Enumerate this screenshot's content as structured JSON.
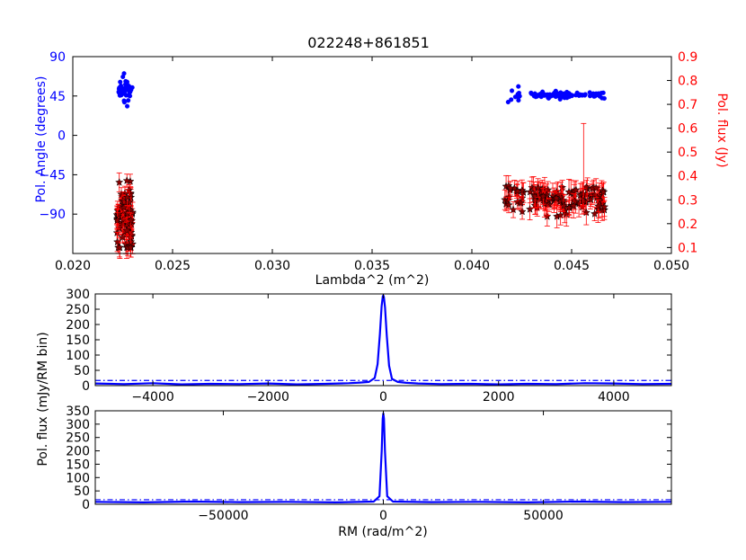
{
  "figure": {
    "title": "022248+861851"
  },
  "colors": {
    "angle": "#0000ff",
    "flux_marker": "#8b0000",
    "flux_error": "#ff0000",
    "fdf_line": "#0000ff",
    "axis": "#000000"
  },
  "chart_data": [
    {
      "type": "scatter",
      "title": "022248+861851",
      "xlabel": "Lambda^2 (m^2)",
      "ylabel_left": "Pol. Angle (degrees)",
      "ylabel_right": "Pol. flux (Jy)",
      "xlim": [
        0.02,
        0.05
      ],
      "ylim_left": [
        -135,
        90
      ],
      "ylim_right": [
        0.075,
        0.9
      ],
      "x_ticks": [
        0.02,
        0.025,
        0.03,
        0.035,
        0.04,
        0.045,
        0.05
      ],
      "x_tick_labels": [
        "0.020",
        "0.025",
        "0.030",
        "0.035",
        "0.040",
        "0.045",
        "0.050"
      ],
      "y_left_ticks": [
        90,
        45,
        0,
        -45,
        -90
      ],
      "y_left_tick_labels": [
        "90",
        "45",
        "0",
        "−45",
        "−90"
      ],
      "y_right_ticks": [
        0.1,
        0.2,
        0.3,
        0.4,
        0.5,
        0.6,
        0.7,
        0.8,
        0.9
      ],
      "y_right_tick_labels": [
        "0.1",
        "0.2",
        "0.3",
        "0.4",
        "0.5",
        "0.6",
        "0.7",
        "0.8",
        "0.9"
      ],
      "series": [
        {
          "kind": "angle-points",
          "axis": "left",
          "marker": "circle",
          "clusters": [
            {
              "x_range": [
                0.0223,
                0.023
              ],
              "y_center": 55,
              "y_spread": 9,
              "count": 45,
              "y_min": 28,
              "y_max": 78
            },
            {
              "x_range": [
                0.0418,
                0.0424
              ],
              "y_center": 45,
              "y_spread": 4,
              "count": 10,
              "y_min": 35,
              "y_max": 56
            },
            {
              "x_range": [
                0.0429,
                0.0467
              ],
              "y_center": 46,
              "y_spread": 2,
              "count": 90,
              "y_min": 40,
              "y_max": 54
            }
          ]
        },
        {
          "kind": "flux-points-with-errors",
          "axis": "right",
          "marker": "star",
          "clusters": [
            {
              "x_range": [
                0.0222,
                0.023
              ],
              "y_center": 0.22,
              "y_spread": 0.07,
              "count": 90,
              "y_min": 0.1,
              "y_max": 0.38,
              "err": 0.035
            },
            {
              "x_range": [
                0.0416,
                0.0426
              ],
              "y_center": 0.31,
              "y_spread": 0.03,
              "count": 22,
              "y_min": 0.25,
              "y_max": 0.38,
              "err": 0.035
            },
            {
              "x_range": [
                0.0429,
                0.0467
              ],
              "y_center": 0.31,
              "y_spread": 0.03,
              "count": 110,
              "y_min": 0.23,
              "y_max": 0.43,
              "err": 0.04
            }
          ]
        }
      ]
    },
    {
      "type": "line",
      "xlim": [
        -5000,
        5000
      ],
      "ylim": [
        0,
        300
      ],
      "x_ticks": [
        -4000,
        -2000,
        0,
        2000,
        4000
      ],
      "x_tick_labels": [
        "−4000",
        "−2000",
        "0",
        "2000",
        "4000"
      ],
      "y_ticks": [
        0,
        50,
        100,
        150,
        200,
        250,
        300
      ],
      "y_tick_labels": [
        "0",
        "50",
        "100",
        "150",
        "200",
        "250",
        "300"
      ],
      "series": [
        {
          "x": [
            -5000,
            -4500,
            -4000,
            -3500,
            -3000,
            -2500,
            -2000,
            -1500,
            -1000,
            -600,
            -400,
            -250,
            -150,
            -100,
            -60,
            -30,
            -10,
            0,
            10,
            30,
            60,
            100,
            150,
            250,
            400,
            600,
            1000,
            1500,
            2000,
            2500,
            3000,
            3500,
            4000,
            4500,
            5000
          ],
          "y": [
            7,
            5,
            8,
            4,
            6,
            5,
            7,
            4,
            6,
            8,
            10,
            12,
            25,
            70,
            170,
            260,
            292,
            295,
            290,
            255,
            165,
            65,
            22,
            12,
            9,
            7,
            5,
            6,
            4,
            6,
            5,
            8,
            7,
            5,
            6
          ]
        }
      ],
      "threshold": {
        "y": 17
      }
    },
    {
      "type": "line",
      "xlabel": "RM (rad/m^2)",
      "xlim": [
        -90000,
        90000
      ],
      "ylim": [
        0,
        350
      ],
      "x_ticks": [
        -50000,
        0,
        50000
      ],
      "x_tick_labels": [
        "−50000",
        "0",
        "50000"
      ],
      "y_ticks": [
        0,
        50,
        100,
        150,
        200,
        250,
        300,
        350
      ],
      "y_tick_labels": [
        "0",
        "50",
        "100",
        "150",
        "200",
        "250",
        "300",
        "350"
      ],
      "series": [
        {
          "x": [
            -90000,
            -75000,
            -60000,
            -45000,
            -30000,
            -15000,
            -3000,
            -1200,
            -500,
            -200,
            0,
            200,
            500,
            1200,
            3000,
            15000,
            30000,
            45000,
            60000,
            75000,
            90000
          ],
          "y": [
            9,
            7,
            10,
            8,
            9,
            7,
            10,
            30,
            200,
            320,
            340,
            320,
            200,
            30,
            10,
            8,
            9,
            7,
            10,
            8,
            9
          ]
        }
      ],
      "threshold": {
        "y": 17
      }
    }
  ],
  "shared_ylabel_lower": "Pol. flux (mJy/RM bin)"
}
